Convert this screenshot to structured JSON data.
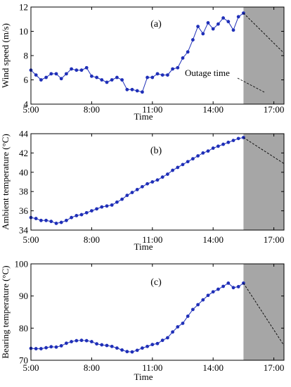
{
  "chart_data": [
    {
      "type": "line",
      "panel_label": "(a)",
      "xlabel": "Time",
      "ylabel": "Wind speed (m/s)",
      "x_ticks": [
        "5:00",
        "8:00",
        "11:00",
        "14:00",
        "17:00"
      ],
      "y_ticks": [
        "4",
        "6",
        "8",
        "10",
        "12"
      ],
      "xlim": [
        "5:00",
        "17:30"
      ],
      "ylim": [
        4,
        12
      ],
      "grid": false,
      "annotation": "Outage time",
      "outage_start": "15:30",
      "x": [
        "5:00",
        "5:15",
        "5:30",
        "5:45",
        "6:00",
        "6:15",
        "6:30",
        "6:45",
        "7:00",
        "7:15",
        "7:30",
        "7:45",
        "8:00",
        "8:15",
        "8:30",
        "8:45",
        "9:00",
        "9:15",
        "9:30",
        "9:45",
        "10:00",
        "10:15",
        "10:30",
        "10:45",
        "11:00",
        "11:15",
        "11:30",
        "11:45",
        "12:00",
        "12:15",
        "12:30",
        "12:45",
        "13:00",
        "13:15",
        "13:30",
        "13:45",
        "14:00",
        "14:15",
        "14:30",
        "14:45",
        "15:00",
        "15:15",
        "15:30"
      ],
      "values": [
        6.8,
        6.4,
        6.0,
        6.2,
        6.5,
        6.5,
        6.1,
        6.5,
        6.9,
        6.8,
        6.8,
        7.0,
        6.3,
        6.2,
        6.0,
        5.8,
        6.0,
        6.2,
        6.0,
        5.2,
        5.2,
        5.1,
        5.0,
        6.2,
        6.2,
        6.5,
        6.4,
        6.4,
        6.9,
        7.0,
        7.8,
        8.3,
        9.3,
        10.4,
        9.8,
        10.7,
        10.2,
        10.6,
        11.1,
        10.8,
        10.1,
        11.2,
        11.5
      ],
      "forecast_x": [
        "15:30",
        "17:30"
      ],
      "forecast_values": [
        11.5,
        8.2
      ]
    },
    {
      "type": "line",
      "panel_label": "(b)",
      "xlabel": "Time",
      "ylabel": "Ambient temperature (°C)",
      "x_ticks": [
        "5:00",
        "8:00",
        "11:00",
        "14:00",
        "17:00"
      ],
      "y_ticks": [
        "34",
        "36",
        "38",
        "40",
        "42",
        "44"
      ],
      "xlim": [
        "5:00",
        "17:30"
      ],
      "ylim": [
        34,
        44
      ],
      "grid": false,
      "outage_start": "15:30",
      "x": [
        "5:00",
        "5:15",
        "5:30",
        "5:45",
        "6:00",
        "6:15",
        "6:30",
        "6:45",
        "7:00",
        "7:15",
        "7:30",
        "7:45",
        "8:00",
        "8:15",
        "8:30",
        "8:45",
        "9:00",
        "9:15",
        "9:30",
        "9:45",
        "10:00",
        "10:15",
        "10:30",
        "10:45",
        "11:00",
        "11:15",
        "11:30",
        "11:45",
        "12:00",
        "12:15",
        "12:30",
        "12:45",
        "13:00",
        "13:15",
        "13:30",
        "13:45",
        "14:00",
        "14:15",
        "14:30",
        "14:45",
        "15:00",
        "15:15",
        "15:30"
      ],
      "values": [
        35.3,
        35.2,
        35.0,
        35.0,
        34.9,
        34.7,
        34.8,
        35.0,
        35.3,
        35.5,
        35.6,
        35.8,
        36.0,
        36.2,
        36.4,
        36.5,
        36.6,
        36.9,
        37.2,
        37.6,
        37.9,
        38.2,
        38.5,
        38.8,
        39.0,
        39.2,
        39.5,
        39.8,
        40.2,
        40.5,
        40.8,
        41.1,
        41.4,
        41.7,
        42.0,
        42.2,
        42.5,
        42.7,
        42.9,
        43.1,
        43.3,
        43.5,
        43.6
      ],
      "forecast_x": [
        "15:30",
        "17:30"
      ],
      "forecast_values": [
        43.6,
        40.9
      ]
    },
    {
      "type": "line",
      "panel_label": "(c)",
      "xlabel": "Time",
      "ylabel": "Bearing temperature (°C)",
      "x_ticks": [
        "5:00",
        "8:00",
        "11:00",
        "14:00",
        "17:00"
      ],
      "y_ticks": [
        "70",
        "80",
        "90",
        "100"
      ],
      "xlim": [
        "5:00",
        "17:30"
      ],
      "ylim": [
        70,
        100
      ],
      "grid": false,
      "outage_start": "15:30",
      "x": [
        "5:00",
        "5:15",
        "5:30",
        "5:45",
        "6:00",
        "6:15",
        "6:30",
        "6:45",
        "7:00",
        "7:15",
        "7:30",
        "7:45",
        "8:00",
        "8:15",
        "8:30",
        "8:45",
        "9:00",
        "9:15",
        "9:30",
        "9:45",
        "10:00",
        "10:15",
        "10:30",
        "10:45",
        "11:00",
        "11:15",
        "11:30",
        "11:45",
        "12:00",
        "12:15",
        "12:30",
        "12:45",
        "13:00",
        "13:15",
        "13:30",
        "13:45",
        "14:00",
        "14:15",
        "14:30",
        "14:45",
        "15:00",
        "15:15",
        "15:30"
      ],
      "values": [
        73.7,
        73.6,
        73.6,
        73.9,
        74.2,
        74.1,
        74.5,
        75.3,
        75.8,
        76.1,
        76.2,
        76.1,
        75.8,
        75.1,
        74.8,
        74.6,
        74.3,
        73.8,
        73.2,
        72.7,
        72.6,
        73.1,
        73.8,
        74.3,
        74.9,
        75.2,
        76.2,
        77.0,
        78.8,
        80.4,
        81.5,
        83.7,
        85.8,
        87.3,
        88.8,
        90.2,
        91.3,
        92.1,
        93.0,
        94.0,
        92.6,
        92.9,
        94.0
      ],
      "forecast_x": [
        "15:30",
        "17:30"
      ],
      "forecast_values": [
        94.0,
        74.6
      ]
    }
  ]
}
